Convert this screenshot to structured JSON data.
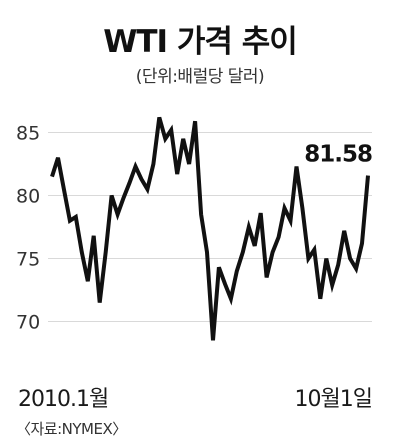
{
  "chart_data": {
    "type": "line",
    "title": "WTI 가격 추이",
    "subtitle": "(단위:배럴당 달러)",
    "x_start_label": "2010.1월",
    "x_end_label": "10월1일",
    "source": "〈자료:NYMEX〉",
    "y_ticks": [
      "85",
      "80",
      "75",
      "70"
    ],
    "ylim": [
      67.5,
      87.5
    ],
    "grid": true,
    "last_value_label": "81.58",
    "line_color": "#111111",
    "grid_color": "#d9d9d9",
    "series": [
      {
        "values": [
          81.5,
          83.0,
          80.5,
          78.0,
          78.3,
          75.5,
          73.2,
          76.8,
          71.5,
          75.5,
          80.0,
          78.5,
          79.8,
          81.0,
          82.3,
          81.3,
          80.5,
          82.5,
          86.2,
          84.5,
          85.2,
          81.7,
          84.5,
          82.5,
          85.9,
          78.5,
          75.5,
          68.5,
          74.3,
          73.0,
          71.8,
          74.0,
          75.5,
          77.5,
          76.0,
          78.6,
          73.5,
          75.5,
          76.7,
          79.0,
          78.0,
          82.3,
          79.0,
          75.0,
          75.7,
          71.8,
          75.0,
          72.9,
          74.5,
          77.2,
          75.0,
          74.2,
          76.2,
          81.58
        ]
      }
    ]
  }
}
